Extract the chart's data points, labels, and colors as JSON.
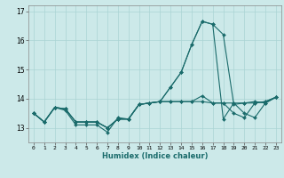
{
  "title": "",
  "xlabel": "Humidex (Indice chaleur)",
  "ylabel": "",
  "xlim": [
    -0.5,
    23.5
  ],
  "ylim": [
    12.5,
    17.2
  ],
  "yticks": [
    13,
    14,
    15,
    16,
    17
  ],
  "xticks": [
    0,
    1,
    2,
    3,
    4,
    5,
    6,
    7,
    8,
    9,
    10,
    11,
    12,
    13,
    14,
    15,
    16,
    17,
    18,
    19,
    20,
    21,
    22,
    23
  ],
  "background_color": "#cce9e9",
  "line_color": "#1a6b6b",
  "grid_color": "#aad4d4",
  "lines": [
    {
      "x": [
        0,
        1,
        2,
        3,
        4,
        5,
        6,
        7,
        8,
        9,
        10,
        11,
        12,
        13,
        14,
        15,
        16,
        17,
        18,
        19,
        20,
        21,
        22,
        23
      ],
      "y": [
        13.5,
        13.2,
        13.7,
        13.6,
        13.1,
        13.1,
        13.1,
        12.85,
        13.35,
        13.3,
        13.8,
        13.85,
        13.9,
        14.4,
        14.9,
        15.85,
        16.65,
        16.55,
        16.2,
        13.8,
        13.85,
        13.9,
        13.85,
        14.05
      ]
    },
    {
      "x": [
        0,
        1,
        2,
        3,
        4,
        5,
        6,
        7,
        8,
        9,
        10,
        11,
        12,
        13,
        14,
        15,
        16,
        17,
        18,
        19,
        20,
        21,
        22,
        23
      ],
      "y": [
        13.5,
        13.2,
        13.7,
        13.65,
        13.2,
        13.2,
        13.2,
        13.0,
        13.3,
        13.3,
        13.8,
        13.85,
        13.9,
        13.9,
        13.9,
        13.9,
        13.9,
        13.85,
        13.85,
        13.85,
        13.85,
        13.85,
        13.9,
        14.05
      ]
    },
    {
      "x": [
        0,
        1,
        2,
        3,
        4,
        5,
        6,
        7,
        8,
        9,
        10,
        11,
        12,
        13,
        14,
        15,
        16,
        17,
        18,
        19,
        20,
        21,
        22,
        23
      ],
      "y": [
        13.5,
        13.2,
        13.7,
        13.65,
        13.2,
        13.2,
        13.2,
        13.0,
        13.3,
        13.3,
        13.8,
        13.85,
        13.9,
        13.9,
        13.9,
        13.9,
        14.1,
        13.85,
        13.85,
        13.5,
        13.35,
        13.85,
        13.9,
        14.05
      ]
    },
    {
      "x": [
        0,
        1,
        2,
        3,
        4,
        5,
        6,
        7,
        8,
        9,
        10,
        11,
        12,
        13,
        14,
        15,
        16,
        17,
        18,
        19,
        20,
        21,
        22,
        23
      ],
      "y": [
        13.5,
        13.2,
        13.7,
        13.65,
        13.2,
        13.2,
        13.2,
        13.0,
        13.3,
        13.3,
        13.8,
        13.85,
        13.9,
        14.4,
        14.9,
        15.85,
        16.65,
        16.55,
        13.3,
        13.85,
        13.5,
        13.35,
        13.85,
        14.05
      ]
    }
  ]
}
